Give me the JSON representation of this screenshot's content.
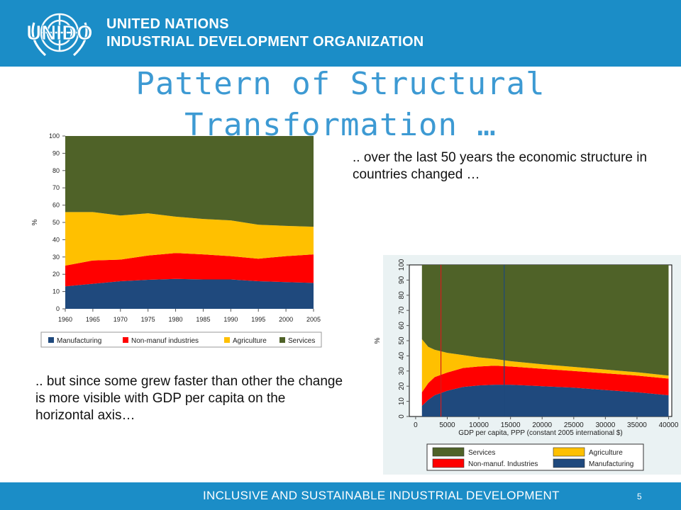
{
  "header": {
    "logo_text": "UNIDO",
    "org_line1": "UNITED NATIONS",
    "org_line2": "INDUSTRIAL DEVELOPMENT ORGANIZATION"
  },
  "title": "Pattern of Structural Transformation …",
  "text_top": ".. over the last 50 years the economic structure in countries changed …",
  "text_bottom": ".. but since some grew faster than other the change is more visible with GDP per capita on the horizontal axis…",
  "footer": {
    "text": "INCLUSIVE AND SUSTAINABLE INDUSTRIAL DEVELOPMENT",
    "page_number": "5"
  },
  "colors": {
    "header": "#1b8dc7",
    "title": "#3d9ad3",
    "manufacturing": "#1f497d",
    "non_manuf": "#ff0000",
    "agriculture": "#ffc000",
    "services": "#4f6228"
  },
  "chart_data": [
    {
      "type": "area",
      "stacked": true,
      "x": [
        1960,
        1965,
        1970,
        1975,
        1980,
        1985,
        1990,
        1995,
        2000,
        2005
      ],
      "xticks": [
        "1960",
        "1965",
        "1970",
        "1975",
        "1980",
        "1985",
        "1990",
        "1995",
        "2000",
        "2005"
      ],
      "ylabel": "%",
      "ylim": [
        0,
        100
      ],
      "yticks": [
        "0",
        "10",
        "20",
        "30",
        "40",
        "50",
        "60",
        "70",
        "80",
        "90",
        "100"
      ],
      "legend_position": "bottom",
      "series": [
        {
          "name": "Manufacturing",
          "color": "#1f497d",
          "values": [
            13,
            14.5,
            16,
            16.8,
            17.3,
            17,
            17,
            16,
            15.5,
            15
          ]
        },
        {
          "name": "Non-manuf industries",
          "color": "#ff0000",
          "values": [
            12,
            13.5,
            12.5,
            14,
            15,
            14.5,
            13.5,
            13,
            15,
            16.5
          ]
        },
        {
          "name": "Agriculture",
          "color": "#ffc000",
          "values": [
            31,
            28,
            25.5,
            24.5,
            21,
            20.5,
            20.7,
            19.7,
            17.5,
            16
          ]
        },
        {
          "name": "Services",
          "color": "#4f6228",
          "values": [
            44,
            44,
            46,
            44.7,
            46.7,
            48,
            48.8,
            51.3,
            52,
            52.5
          ]
        }
      ]
    },
    {
      "type": "area",
      "stacked": true,
      "x": [
        1000,
        2000,
        3000,
        5000,
        7500,
        10000,
        12500,
        15000,
        20000,
        25000,
        30000,
        35000,
        40000
      ],
      "xlabel": "GDP per capita, PPP (constant 2005 international $)",
      "xticks": [
        "0",
        "5000",
        "10000",
        "15000",
        "20000",
        "25000",
        "30000",
        "35000",
        "40000"
      ],
      "xlim": [
        0,
        40000
      ],
      "ylabel": "%",
      "ylim": [
        0,
        100
      ],
      "yticks": [
        "0",
        "10",
        "20",
        "30",
        "40",
        "50",
        "60",
        "70",
        "80",
        "90",
        "100"
      ],
      "vlines": [
        4000,
        14000
      ],
      "legend_position": "bottom",
      "series": [
        {
          "name": "Manufacturing",
          "color": "#1f497d",
          "values": [
            7,
            11,
            14,
            17,
            19.5,
            20.5,
            21,
            21,
            20,
            19,
            17.5,
            16,
            14
          ]
        },
        {
          "name": "Non-manuf. Industries",
          "color": "#ff0000",
          "values": [
            9,
            11,
            12,
            12,
            12.5,
            12.5,
            12.5,
            12,
            11.5,
            11,
            11,
            11,
            11
          ]
        },
        {
          "name": "Agriculture",
          "color": "#ffc000",
          "values": [
            35,
            24,
            18,
            13,
            8.5,
            6,
            4.5,
            3.5,
            3,
            2.7,
            2.5,
            2.2,
            2
          ]
        },
        {
          "name": "Services",
          "color": "#4f6228",
          "values": [
            49,
            54,
            56,
            58,
            59.5,
            61,
            62,
            63.5,
            65.5,
            67.3,
            69,
            70.8,
            73
          ]
        }
      ]
    }
  ]
}
